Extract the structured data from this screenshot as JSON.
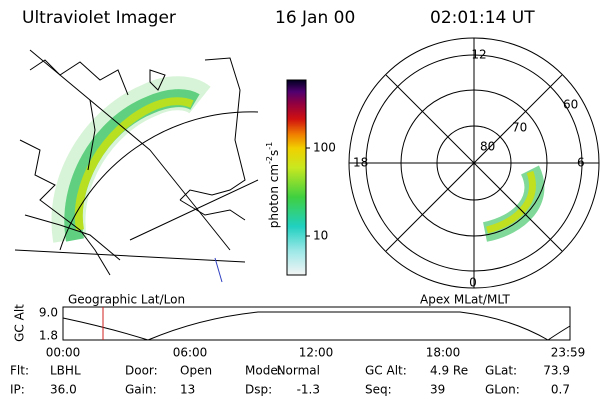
{
  "header": {
    "title": "Ultraviolet Imager",
    "date": "16 Jan 00",
    "time": "02:01:14 UT"
  },
  "colorbar": {
    "label": {
      "text": "photon cm",
      "exp1": "-2",
      "unit2": "s",
      "exp2": "-1"
    },
    "ticks": [
      "100",
      "10"
    ]
  },
  "left_panel": {
    "caption": "Geographic Lat/Lon"
  },
  "right_panel": {
    "caption": "Apex MLat/MLT",
    "mlt_labels": [
      "12",
      "18",
      "6",
      "0"
    ],
    "lat_labels": [
      "80",
      "70",
      "60"
    ]
  },
  "altitude_plot": {
    "ylabel": "GC Alt",
    "yticks": [
      "9.0",
      "1.8"
    ],
    "xticks": [
      "00:00",
      "06:00",
      "12:00",
      "18:00",
      "23:59"
    ]
  },
  "footer": {
    "rows": [
      [
        {
          "label": "Flt:",
          "value": "LBHL"
        },
        {
          "label": "Door:",
          "value": "Open"
        },
        {
          "label": "Mode:",
          "value": "Normal"
        },
        {
          "label": "GC Alt:",
          "value": "4.9 Re"
        },
        {
          "label": "GLat:",
          "value": "73.9"
        }
      ],
      [
        {
          "label": "IP:",
          "value": "36.0"
        },
        {
          "label": "Gain:",
          "value": "13"
        },
        {
          "label": "Dsp:",
          "value": "-1.3"
        },
        {
          "label": "Seq:",
          "value": "39"
        },
        {
          "label": "GLon:",
          "value": "0.7"
        }
      ]
    ]
  }
}
